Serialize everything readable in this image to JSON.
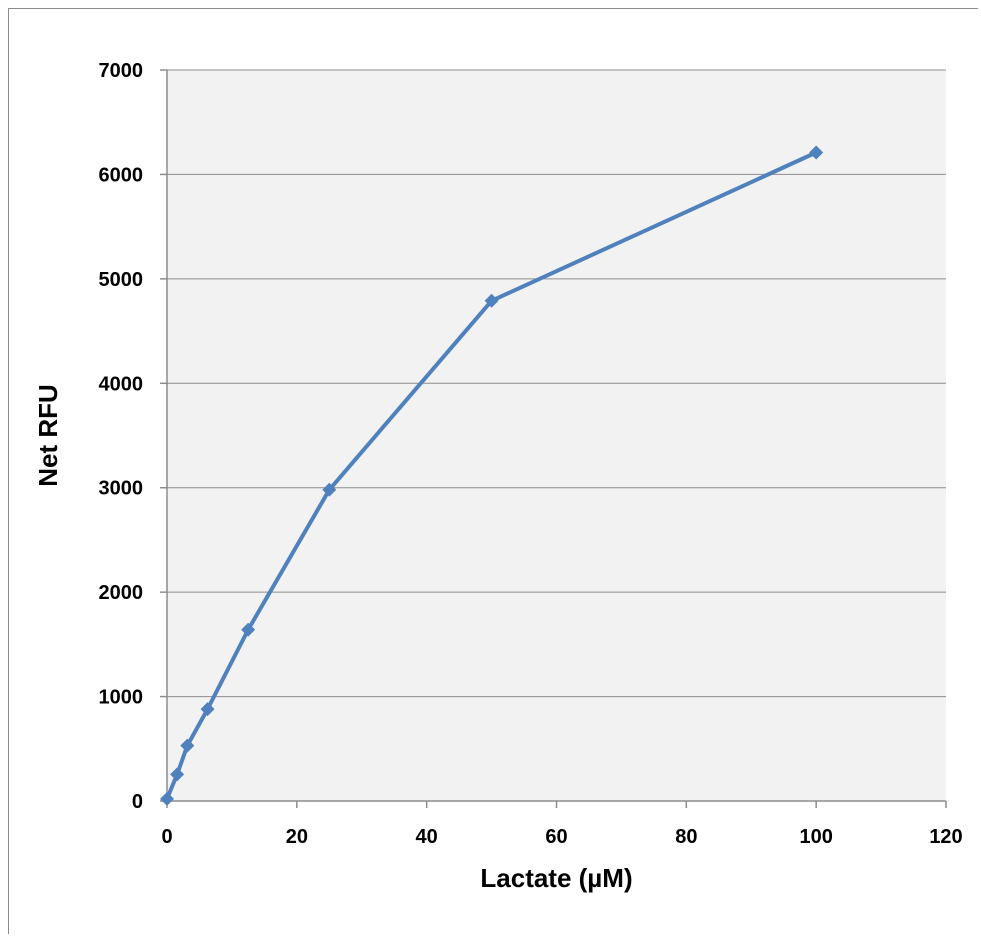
{
  "chart_data": {
    "type": "line",
    "title": "",
    "xlabel": "Lactate (µM)",
    "ylabel": "Net RFU",
    "xlim": [
      0,
      120
    ],
    "ylim": [
      0,
      7000
    ],
    "xticks": [
      0,
      20,
      40,
      60,
      80,
      100,
      120
    ],
    "yticks": [
      0,
      1000,
      2000,
      3000,
      4000,
      5000,
      6000,
      7000
    ],
    "grid": "horizontal",
    "plot_background": "#f2f2f2",
    "gridline_color": "#8c8c8c",
    "series": [
      {
        "color": "#4f81bd",
        "marker": "diamond",
        "x": [
          0,
          1.56,
          3.13,
          6.25,
          12.5,
          25,
          50,
          100
        ],
        "y": [
          20,
          255,
          530,
          880,
          1640,
          2980,
          4790,
          6210
        ]
      }
    ]
  }
}
